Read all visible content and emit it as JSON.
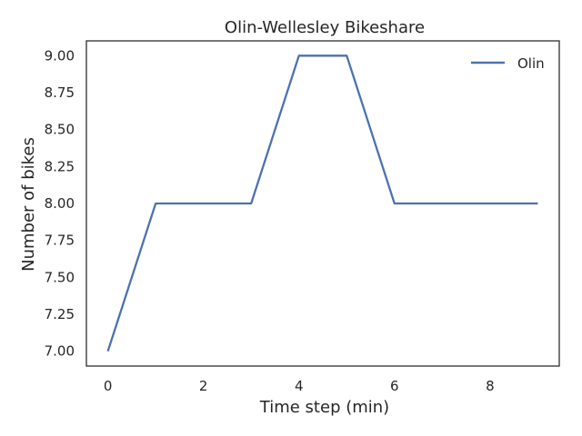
{
  "chart_data": {
    "type": "line",
    "title": "Olin-Wellesley Bikeshare",
    "xlabel": "Time step (min)",
    "ylabel": "Number of bikes",
    "xlim": [
      -0.45,
      9.45
    ],
    "ylim": [
      6.9,
      9.1
    ],
    "xticks": [
      0,
      2,
      4,
      6,
      8
    ],
    "xtick_labels": [
      "0",
      "2",
      "4",
      "6",
      "8"
    ],
    "yticks": [
      7.0,
      7.25,
      7.5,
      7.75,
      8.0,
      8.25,
      8.5,
      8.75,
      9.0
    ],
    "ytick_labels": [
      "7.00",
      "7.25",
      "7.50",
      "7.75",
      "8.00",
      "8.25",
      "8.50",
      "8.75",
      "9.00"
    ],
    "grid": false,
    "legend_position": "top-right",
    "x": [
      0,
      1,
      2,
      3,
      4,
      5,
      6,
      7,
      8,
      9
    ],
    "series": [
      {
        "name": "Olin",
        "color": "#4c72b0",
        "values": [
          7,
          8,
          8,
          8,
          9,
          9,
          8,
          8,
          8,
          8
        ]
      }
    ]
  }
}
